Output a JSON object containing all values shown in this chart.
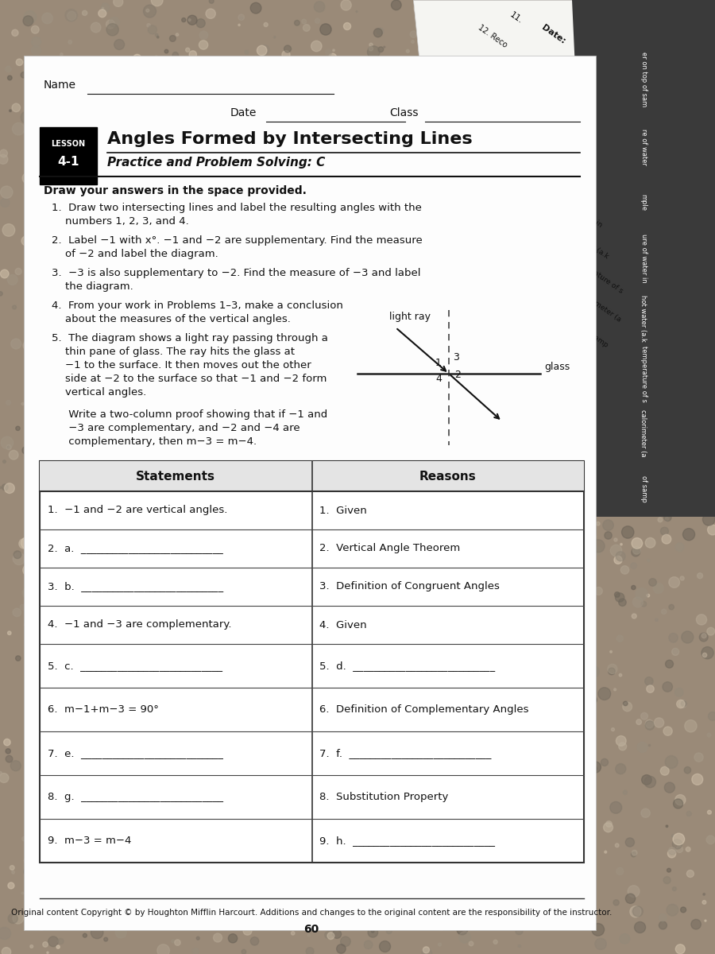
{
  "title": "Angles Formed by Intersecting Lines",
  "subtitle": "Practice and Problem Solving: C",
  "lesson_label": "LESSON",
  "lesson_number": "4-1",
  "name_label": "Name",
  "date_label": "Date",
  "class_label": "Class",
  "draw_header": "Draw your answers in the space provided.",
  "p1": "1.  Draw two intersecting lines and label the resulting angles with the\n     numbers 1, 2, 3, and 4.",
  "p2": "2.  Label −1 with x°. −1 and −2 are supplementary. Find the measure\n     of −2 and label the diagram.",
  "p3": "3.  −3 is also supplementary to −2. Find the measure of −3 and label\n     the diagram.",
  "p4": "4.  From your work in Problems 1–3, make a conclusion\n     about the measures of the vertical angles.",
  "p5a": "5.  The diagram shows a light ray passing through a\n     thin pane of glass. The ray hits the glass at\n     −1 to the surface. It then moves out the other\n     side at −2 to the surface so that −1 and −2 form\n     vertical angles.",
  "p5b": "     Write a two-column proof showing that if −1 and\n     −3 are complementary, and −2 and −4 are\n     complementary, then m−3 = m−4.",
  "light_ray_label": "light ray",
  "glass_label": "glass",
  "table_headers": [
    "Statements",
    "Reasons"
  ],
  "row_statements": [
    "1.  −1 and −2 are vertical angles.",
    "2.  a.  ___________________________",
    "3.  b.  ___________________________",
    "4.  −1 and −3 are complementary.",
    "5.  c.  ___________________________",
    "6.  m−1+m−3 = 90°",
    "7.  e.  ___________________________",
    "8.  g.  ___________________________",
    "9.  m−3 = m−4"
  ],
  "row_reasons": [
    "1.  Given",
    "2.  Vertical Angle Theorem",
    "3.  Definition of Congruent Angles",
    "4.  Given",
    "5.  d.  ___________________________",
    "6.  Definition of Complementary Angles",
    "7.  f.  ___________________________",
    "8.  Substitution Property",
    "9.  h.  ___________________________"
  ],
  "footer": "Original content Copyright © by Houghton Mifflin Harcourt. Additions and changes to the original content are the responsibility of the instructor.",
  "page_number": "60",
  "granite_color": "#b8a890",
  "paper_color": "#fdfdfd",
  "text_color": "#111111",
  "header_gray": "#d8d8d8",
  "table_border": "#555555"
}
